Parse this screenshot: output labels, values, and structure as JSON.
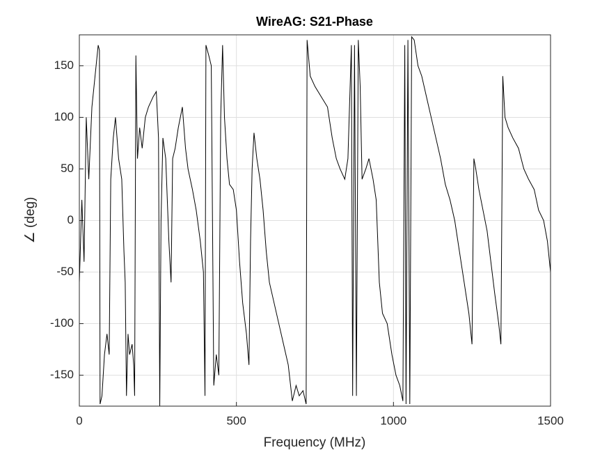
{
  "chart_data": {
    "type": "line",
    "title": "WireAG: S21-Phase",
    "x_label": "Frequency (MHz)",
    "y_label": "∠ (deg)",
    "x": [
      0,
      8,
      15,
      22,
      30,
      40,
      50,
      60,
      64,
      66,
      72,
      80,
      88,
      95,
      100,
      108,
      115,
      125,
      135,
      142,
      146,
      150,
      155,
      160,
      168,
      173,
      176,
      180,
      185,
      192,
      200,
      210,
      220,
      235,
      245,
      252,
      256,
      260,
      266,
      275,
      285,
      292,
      297,
      305,
      315,
      328,
      338,
      346,
      360,
      372,
      385,
      395,
      400,
      403,
      412,
      420,
      428,
      436,
      444,
      450,
      456,
      462,
      470,
      478,
      490,
      500,
      510,
      520,
      532,
      540,
      545,
      550,
      556,
      565,
      575,
      585,
      595,
      605,
      620,
      635,
      650,
      665,
      678,
      690,
      700,
      712,
      722,
      725,
      735,
      750,
      770,
      790,
      805,
      818,
      830,
      845,
      855,
      866,
      870,
      876,
      882,
      888,
      894,
      900,
      912,
      922,
      935,
      945,
      955,
      965,
      980,
      995,
      1008,
      1020,
      1030,
      1036,
      1040,
      1046,
      1052,
      1058,
      1066,
      1078,
      1090,
      1105,
      1120,
      1135,
      1150,
      1165,
      1180,
      1195,
      1210,
      1225,
      1240,
      1250,
      1256,
      1262,
      1272,
      1285,
      1298,
      1310,
      1322,
      1335,
      1342,
      1348,
      1355,
      1365,
      1380,
      1398,
      1415,
      1430,
      1448,
      1462,
      1478,
      1490,
      1500
    ],
    "values": [
      -60,
      20,
      -40,
      100,
      40,
      110,
      140,
      170,
      165,
      -178,
      -170,
      -130,
      -110,
      -130,
      40,
      80,
      100,
      60,
      40,
      -30,
      -60,
      -170,
      -110,
      -130,
      -120,
      -140,
      -170,
      160,
      60,
      90,
      70,
      100,
      110,
      120,
      125,
      80,
      -180,
      0,
      80,
      60,
      -20,
      -60,
      60,
      70,
      90,
      110,
      70,
      50,
      30,
      10,
      -20,
      -50,
      -170,
      170,
      160,
      150,
      -160,
      -130,
      -150,
      100,
      170,
      100,
      60,
      35,
      30,
      10,
      -40,
      -80,
      -110,
      -140,
      -20,
      50,
      85,
      60,
      40,
      10,
      -30,
      -60,
      -80,
      -100,
      -120,
      -140,
      -175,
      -160,
      -170,
      -165,
      -178,
      175,
      140,
      130,
      120,
      110,
      80,
      60,
      50,
      40,
      60,
      170,
      -170,
      170,
      -170,
      175,
      130,
      40,
      50,
      60,
      40,
      20,
      -60,
      -90,
      -100,
      -130,
      -150,
      -160,
      -175,
      170,
      -178,
      175,
      -178,
      178,
      175,
      150,
      140,
      120,
      100,
      80,
      60,
      35,
      20,
      0,
      -30,
      -60,
      -90,
      -120,
      60,
      50,
      30,
      10,
      -10,
      -40,
      -70,
      -100,
      -120,
      140,
      100,
      90,
      80,
      70,
      50,
      40,
      30,
      10,
      0,
      -20,
      -50
    ],
    "color": "#000000",
    "xlim": [
      0,
      1500
    ],
    "xticks": [
      0,
      500,
      1000,
      1500
    ],
    "ylim": [
      -180,
      180
    ],
    "yticks": [
      -150,
      -100,
      -50,
      0,
      50,
      100,
      150
    ],
    "grid": true
  }
}
